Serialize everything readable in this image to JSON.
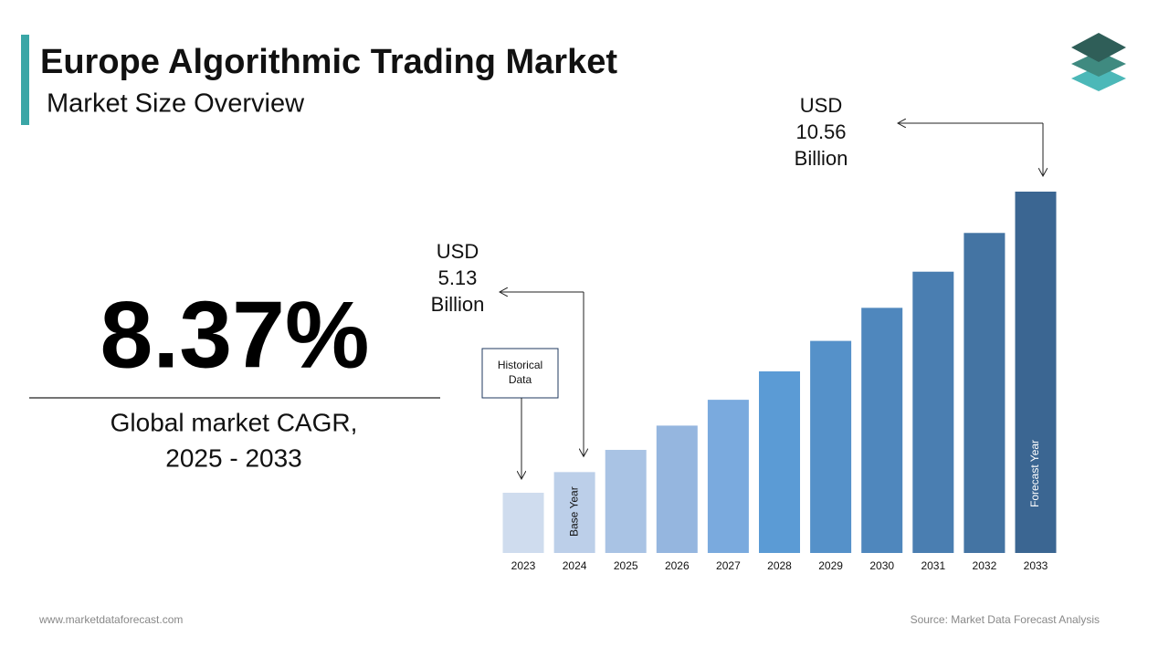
{
  "chart_data": {
    "type": "bar",
    "title": "Europe Algorithmic Trading Market",
    "subtitle": "Market Size Overview",
    "cagr": "8.37%",
    "cagr_label": [
      "Global market CAGR,",
      "2025 - 2033"
    ],
    "categories": [
      "2023",
      "2024",
      "2025",
      "2026",
      "2027",
      "2028",
      "2029",
      "2030",
      "2031",
      "2032",
      "2033"
    ],
    "values": [
      4.73,
      5.13,
      5.56,
      6.03,
      6.53,
      7.08,
      7.67,
      8.31,
      9.01,
      9.76,
      10.56
    ],
    "colors": [
      "#cfdcee",
      "#bccfe9",
      "#a9c3e4",
      "#95b6df",
      "#7aaade",
      "#5b9bd5",
      "#5591c9",
      "#4f87bd",
      "#4a7eb1",
      "#4474a3",
      "#3b6692"
    ],
    "annotations": [
      {
        "lines": [
          "USD",
          "5.13",
          "Billion"
        ]
      },
      {
        "lines": [
          "USD",
          "10.56",
          "Billion"
        ]
      }
    ],
    "historical_label": [
      "Historical",
      "Data"
    ],
    "base_year_label": "Base Year",
    "forecast_year_label": "Forecast Year",
    "website": "www.marketdataforecast.com",
    "source": "Source: Market Data Forecast Analysis"
  }
}
